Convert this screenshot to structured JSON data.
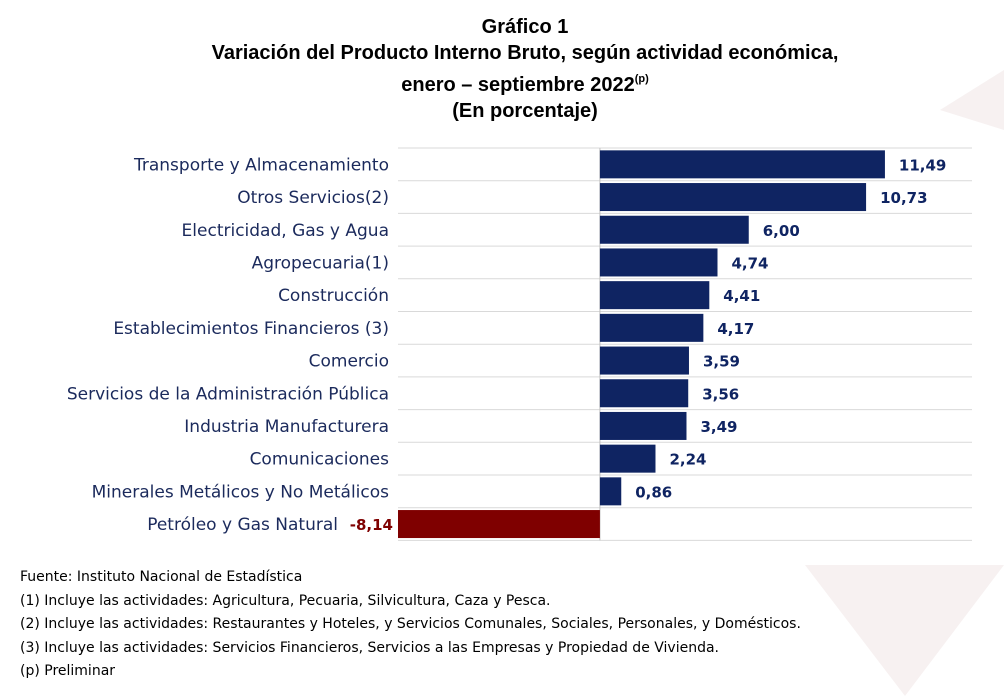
{
  "header": {
    "title_line1": "Gráfico 1",
    "title_line2": "Variación del Producto Interno Bruto, según actividad económica,",
    "title_line3": "enero – septiembre 2022",
    "title_line3_sup": "(p)",
    "title_line4": "(En porcentaje)"
  },
  "colors": {
    "positive_bar": "#0f2462",
    "negative_bar": "#7f0000",
    "category_text": "#1b2a5c",
    "positive_label": "#0f2462",
    "negative_label": "#7f0000",
    "grid": "#d9d9d9"
  },
  "chart_data": {
    "type": "bar",
    "orientation": "horizontal",
    "title": "Variación del Producto Interno Bruto, según actividad económica, enero – septiembre 2022(p)",
    "categories": [
      "Transporte y Almacenamiento",
      "Otros Servicios(2)",
      "Electricidad, Gas y Agua",
      "Agropecuaria(1)",
      "Construcción",
      "Establecimientos Financieros (3)",
      "Comercio",
      "Servicios de la Administración Pública",
      "Industria Manufacturera",
      "Comunicaciones",
      "Minerales Metálicos y No Metálicos",
      "Petróleo y Gas Natural"
    ],
    "values": [
      11.49,
      10.73,
      6.0,
      4.74,
      4.41,
      4.17,
      3.59,
      3.56,
      3.49,
      2.24,
      0.86,
      -8.14
    ],
    "value_labels": [
      "11,49",
      "10,73",
      "6,00",
      "4,74",
      "4,41",
      "4,17",
      "3,59",
      "3,56",
      "3,49",
      "2,24",
      "0,86",
      "-8,14"
    ],
    "xlim": [
      -8.14,
      15
    ],
    "grid": true
  },
  "footnotes": [
    "Fuente: Instituto Nacional de Estadística",
    "(1) Incluye las actividades: Agricultura, Pecuaria, Silvicultura, Caza y Pesca.",
    "(2) Incluye las actividades: Restaurantes y Hoteles, y Servicios Comunales, Sociales, Personales, y Domésticos.",
    "(3) Incluye las actividades: Servicios Financieros, Servicios a las Empresas y Propiedad de Vivienda.",
    "(p) Preliminar"
  ]
}
